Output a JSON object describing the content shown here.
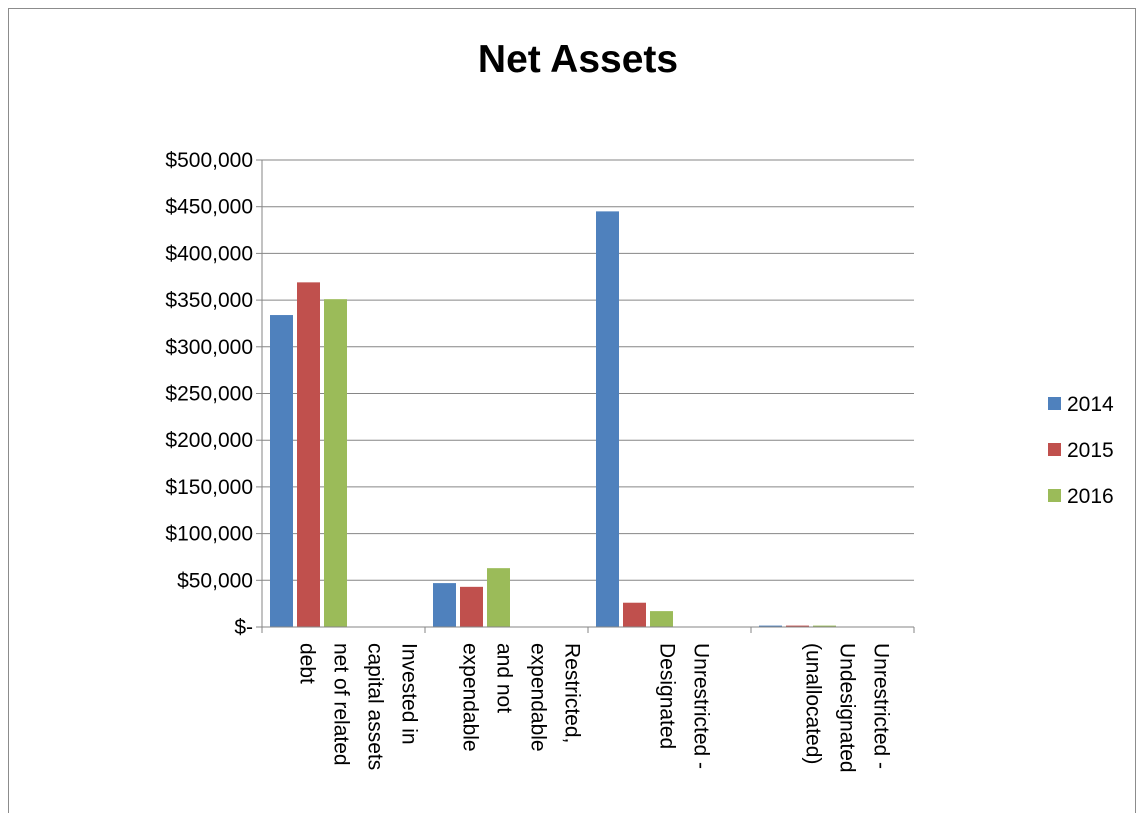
{
  "chart_data": {
    "type": "bar",
    "title": "Net Assets",
    "xlabel": "",
    "ylabel": "",
    "ylim": [
      0,
      500000
    ],
    "yticks": [
      0,
      50000,
      100000,
      150000,
      200000,
      250000,
      300000,
      350000,
      400000,
      450000,
      500000
    ],
    "ytick_labels": [
      "$-",
      "$50,000",
      "$100,000",
      "$150,000",
      "$200,000",
      "$250,000",
      "$300,000",
      "$350,000",
      "$400,000",
      "$450,000",
      "$500,000"
    ],
    "categories": [
      "Invested in capital assets net of related debt",
      "Restricted, expendable and not expendable",
      "Unrestricted - Designated",
      "Unrestricted - Undesignated (unallocated)"
    ],
    "category_label_lines": [
      [
        "Invested in",
        "capital assets",
        "net of related",
        "debt"
      ],
      [
        "Restricted,",
        "expendable",
        "and not",
        "expendable"
      ],
      [
        "Unrestricted -",
        "Designated"
      ],
      [
        "Unrestricted -",
        "Undesignated",
        "(unallocated)"
      ]
    ],
    "series": [
      {
        "name": "2014",
        "color": "#4f81bd",
        "values": [
          334000,
          47000,
          445000,
          1500
        ]
      },
      {
        "name": "2015",
        "color": "#c0504d",
        "values": [
          369000,
          43000,
          26000,
          1500
        ]
      },
      {
        "name": "2016",
        "color": "#9bbb59",
        "values": [
          351000,
          63000,
          17000,
          1500
        ]
      }
    ],
    "grid": true,
    "legend_position": "right"
  }
}
